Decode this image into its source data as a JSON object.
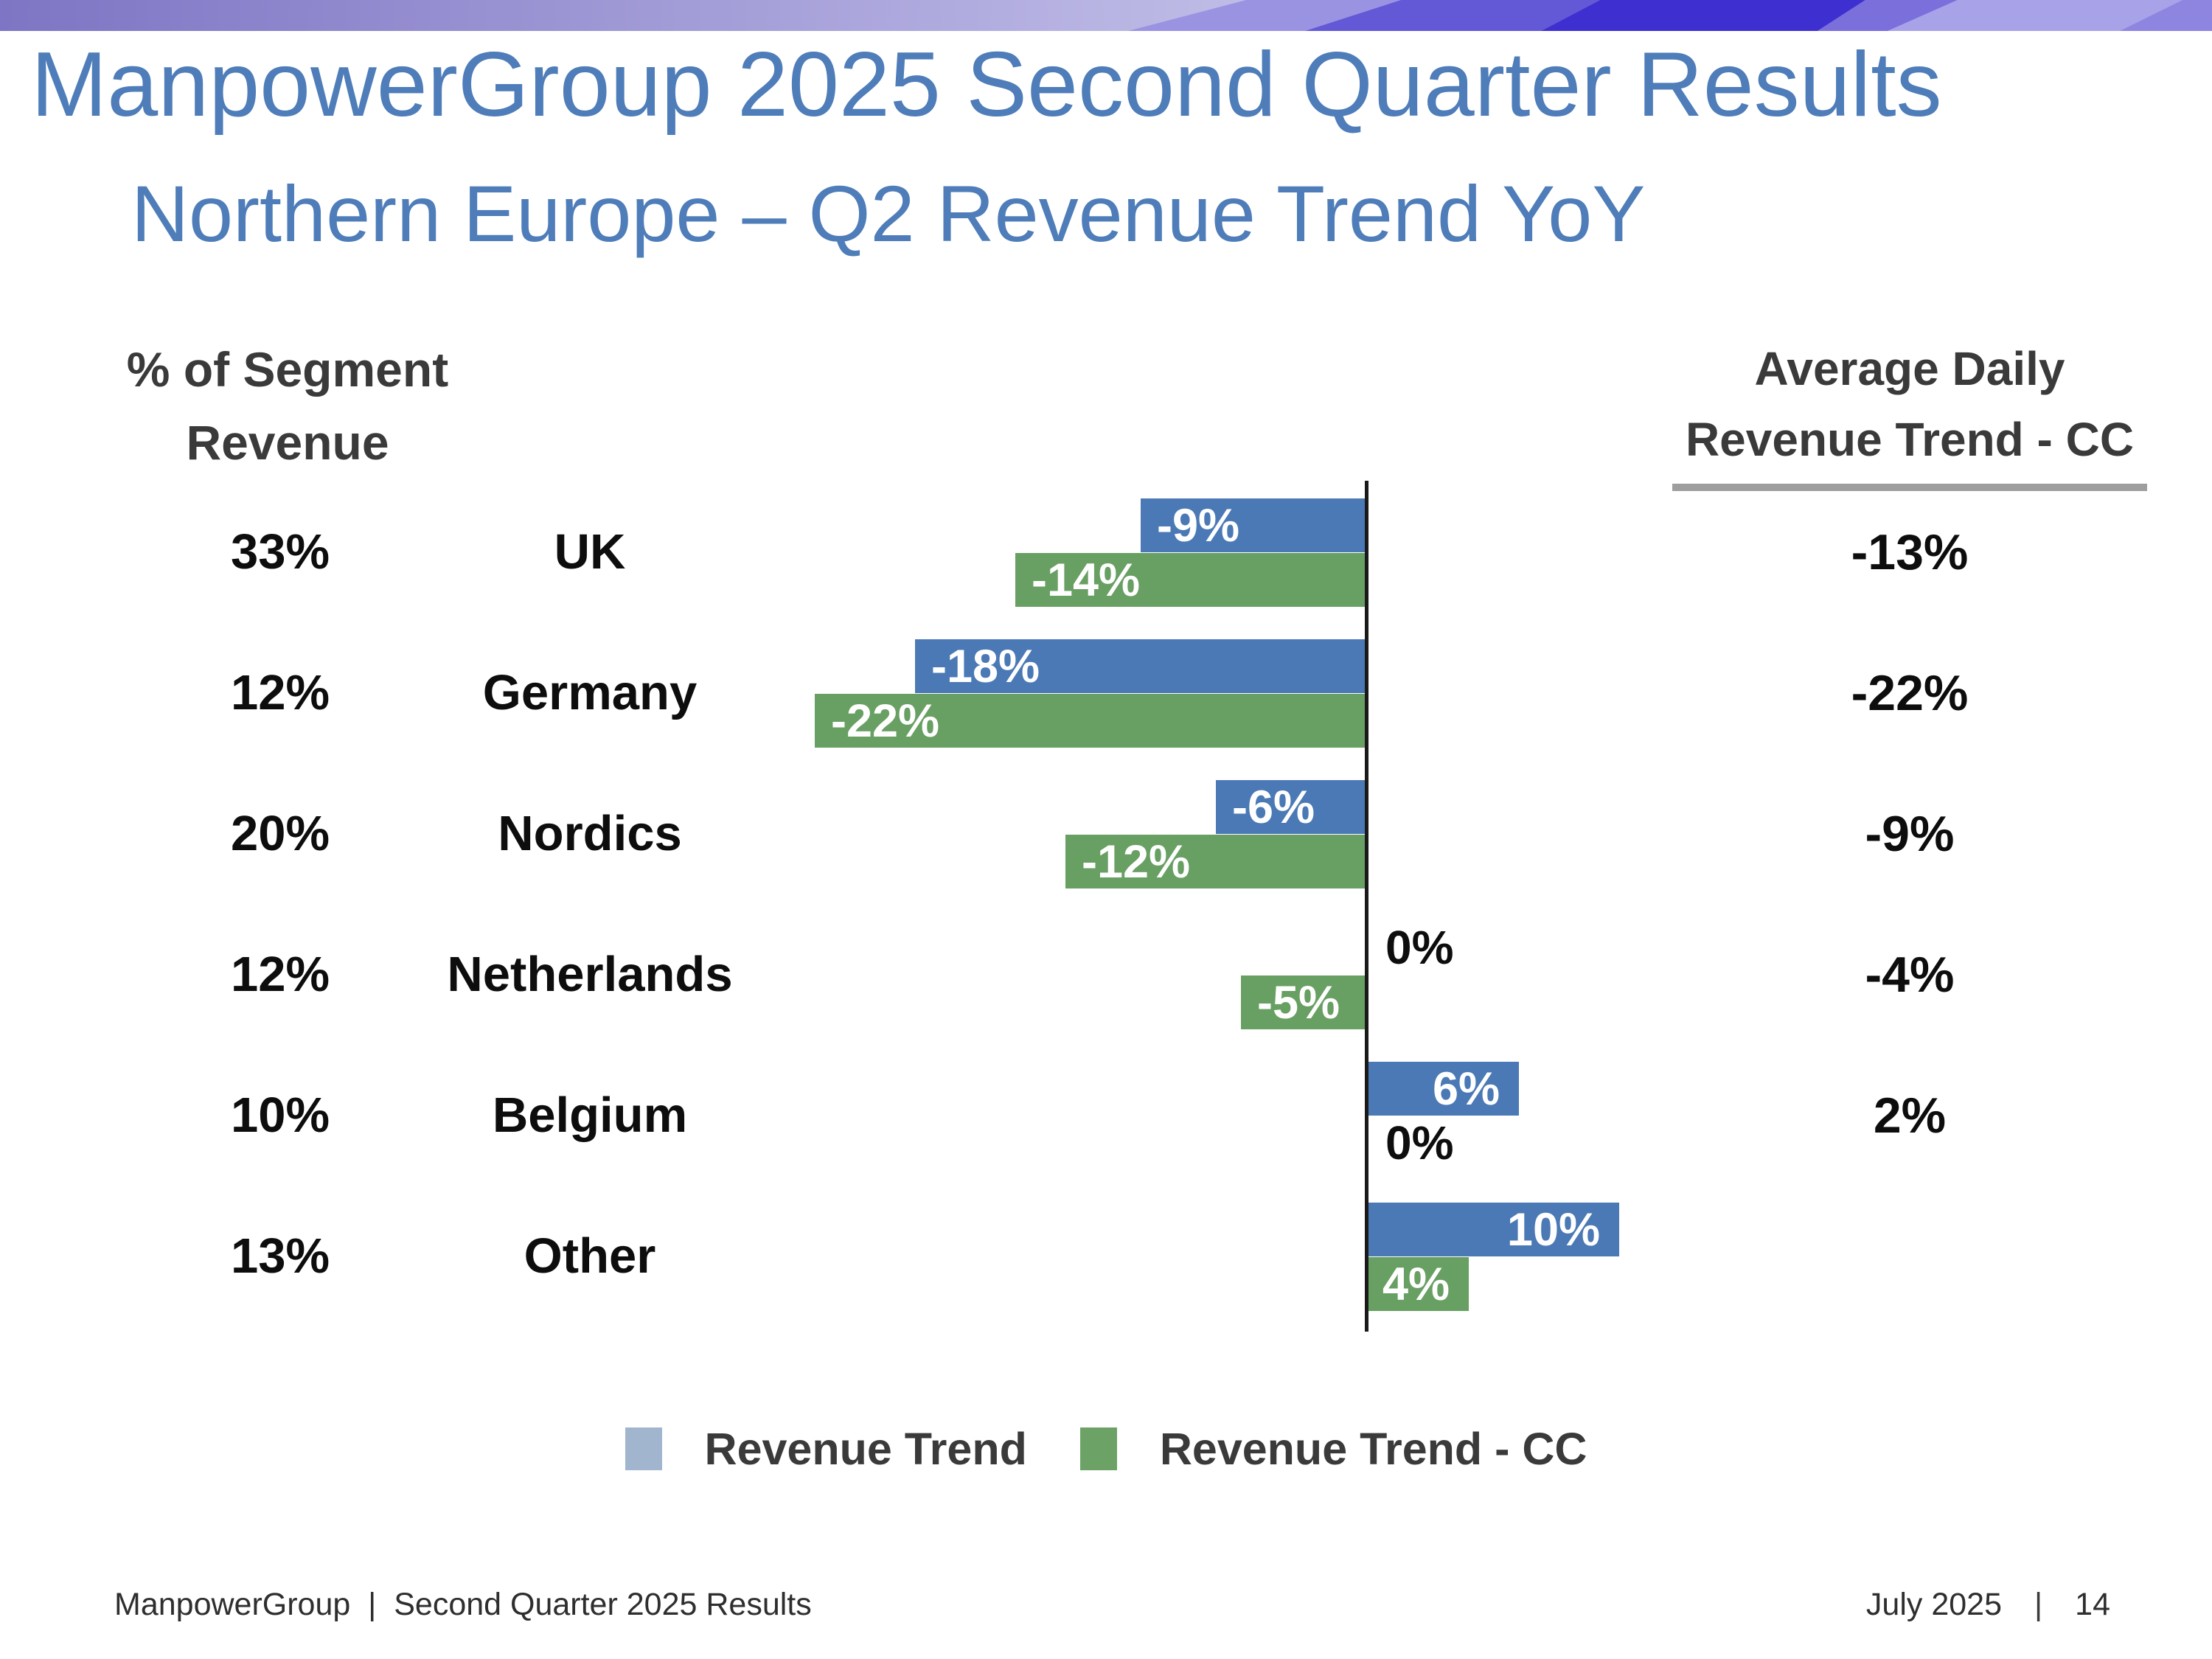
{
  "colors": {
    "title_blue": "#4E7DB9",
    "text_dark": "#3A3A3A",
    "bar_blue": "#4B79B5",
    "bar_green": "#689F62",
    "legend_blue": "#A2B5CF",
    "legend_green": "#6DA266",
    "underline_gray": "#9E9E9E",
    "axis_black": "#1A1A1A",
    "banner_gradient_left": "#7E75C4",
    "banner_gradient_right": "#C6C3EA",
    "banner_facets": [
      "#9A93E2",
      "#6358D5",
      "#3E30D0",
      "#7A6FDB",
      "#A8A2E8",
      "#8D85E0"
    ]
  },
  "header": {
    "title": "ManpowerGroup 2025 Second Quarter Results",
    "subtitle": "Northern Europe – Q2 Revenue Trend YoY"
  },
  "left_header": {
    "line1": "% of Segment",
    "line2": "Revenue"
  },
  "right_header": {
    "line1": "Average Daily",
    "line2": "Revenue Trend - CC"
  },
  "legend": [
    {
      "label": "Revenue Trend",
      "color": "#A2B5CF"
    },
    {
      "label": "Revenue Trend - CC",
      "color": "#6DA266"
    }
  ],
  "footer": {
    "left": "ManpowerGroup  |  Second Quarter 2025 Results",
    "right_date": "July 2025",
    "separator": "|",
    "page": "14"
  },
  "chart_data": {
    "type": "bar",
    "orientation": "horizontal",
    "title": "Northern Europe – Q2 Revenue Trend YoY",
    "categories": [
      "UK",
      "Germany",
      "Nordics",
      "Netherlands",
      "Belgium",
      "Other"
    ],
    "segment_revenue_pct": [
      "33%",
      "12%",
      "20%",
      "12%",
      "10%",
      "13%"
    ],
    "series": [
      {
        "name": "Revenue Trend",
        "values": [
          -9,
          -18,
          -6,
          0,
          6,
          10
        ]
      },
      {
        "name": "Revenue Trend - CC",
        "values": [
          -14,
          -22,
          -12,
          -5,
          0,
          4
        ]
      }
    ],
    "avg_daily_revenue_trend_cc": [
      "-13%",
      "-22%",
      "-9%",
      "-4%",
      "2%",
      null
    ],
    "xlim": [
      -24,
      12
    ],
    "zero_axis_line": true,
    "value_labels": "inside-end",
    "legend_position": "bottom",
    "grid": false
  }
}
